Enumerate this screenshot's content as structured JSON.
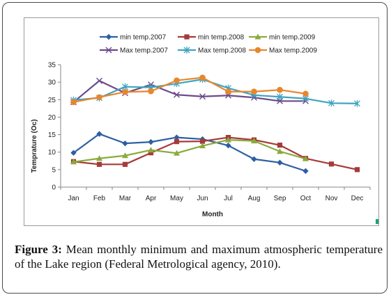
{
  "chart_data": {
    "type": "line",
    "title": "",
    "xlabel": "Month",
    "ylabel": "Temprature (Oc)",
    "ylim": [
      0,
      35
    ],
    "yticks": [
      0,
      5,
      10,
      15,
      20,
      25,
      30,
      35
    ],
    "grid": false,
    "legend_position": "top",
    "categories": [
      "Jan",
      "Feb",
      "Mar",
      "Apr",
      "May",
      "Jun",
      "Jul",
      "Aug",
      "Sep",
      "Oct",
      "Nov",
      "Dec"
    ],
    "series": [
      {
        "name": "min temp.2007",
        "color": "#2e5fa3",
        "marker": "diamond",
        "values": [
          9.8,
          15.2,
          12.5,
          12.9,
          14.2,
          13.7,
          11.9,
          8.0,
          7.0,
          4.6,
          null,
          null
        ]
      },
      {
        "name": "min temp.2008",
        "color": "#a63a3a",
        "marker": "square",
        "values": [
          7.3,
          6.5,
          6.5,
          9.8,
          13.0,
          13.1,
          14.2,
          13.5,
          12.0,
          8.2,
          6.6,
          5.0
        ]
      },
      {
        "name": "min temp.2009",
        "color": "#8aab3c",
        "marker": "triangle",
        "values": [
          7.2,
          8.2,
          9.0,
          10.6,
          9.7,
          11.8,
          13.5,
          13.2,
          10.2,
          8.1,
          null,
          null
        ]
      },
      {
        "name": "Max temp.2007",
        "color": "#6c4a8a",
        "marker": "x",
        "values": [
          24.3,
          30.4,
          26.9,
          29.3,
          26.4,
          25.9,
          26.2,
          25.6,
          24.6,
          24.6,
          null,
          null
        ]
      },
      {
        "name": "Max temp.2008",
        "color": "#3fa3bf",
        "marker": "star",
        "values": [
          24.9,
          25.5,
          28.7,
          28.5,
          29.6,
          30.8,
          28.3,
          26.3,
          25.8,
          25.3,
          24.0,
          23.9
        ]
      },
      {
        "name": "Max temp.2009",
        "color": "#e8862e",
        "marker": "circle",
        "values": [
          24.3,
          25.7,
          27.2,
          27.4,
          30.5,
          31.3,
          27.3,
          27.3,
          27.8,
          26.7,
          null,
          null
        ]
      }
    ]
  },
  "caption": {
    "label": "Figure 3:",
    "text": " Mean monthly minimum and maximum atmospheric temperature of the Lake region (Federal Metrological agency, 2010)."
  }
}
